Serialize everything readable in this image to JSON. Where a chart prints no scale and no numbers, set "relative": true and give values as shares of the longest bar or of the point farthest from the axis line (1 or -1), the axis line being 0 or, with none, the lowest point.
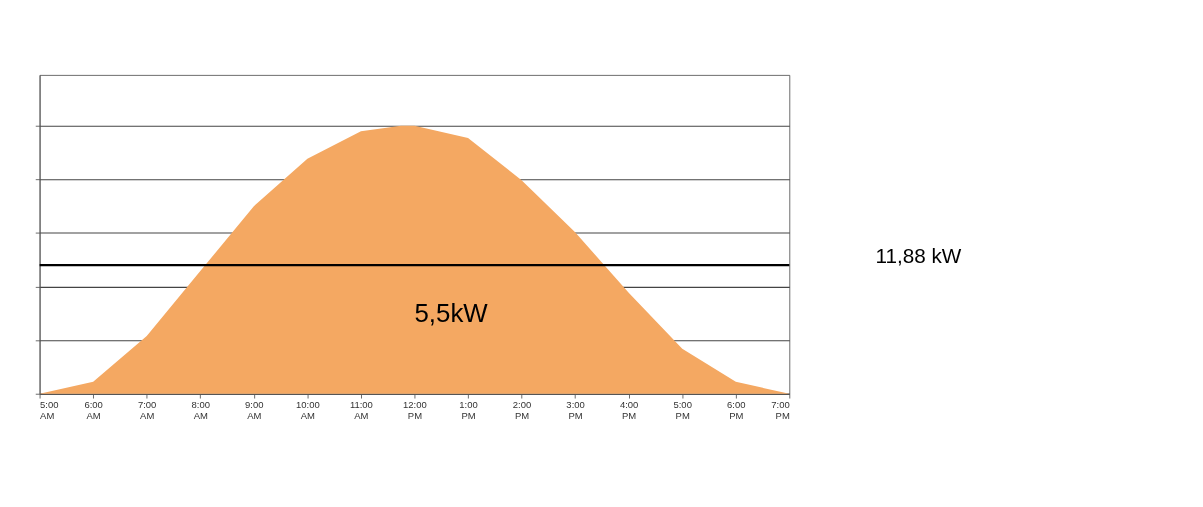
{
  "chart_data": {
    "type": "area",
    "relative": true,
    "x": [
      5,
      6,
      7,
      8,
      9,
      10,
      11,
      11.75,
      12,
      13,
      14,
      15,
      16,
      17,
      18,
      19
    ],
    "series": [
      {
        "color": "#f4a862",
        "values": [
          0,
          0.045,
          0.216,
          0.458,
          0.7,
          0.877,
          0.98,
          1.0,
          1.0,
          0.955,
          0.797,
          0.603,
          0.377,
          0.168,
          0.045,
          0
        ]
      }
    ],
    "xlim": [
      5,
      19
    ],
    "xticks": [
      {
        "value": 5,
        "label": "5:00 AM"
      },
      {
        "value": 6,
        "label": "6:00 AM"
      },
      {
        "value": 7,
        "label": "7:00 AM"
      },
      {
        "value": 8,
        "label": "8:00 AM"
      },
      {
        "value": 9,
        "label": "9:00 AM"
      },
      {
        "value": 10,
        "label": "10:00 AM"
      },
      {
        "value": 11,
        "label": "11:00 AM"
      },
      {
        "value": 12,
        "label": "12:00 PM"
      },
      {
        "value": 13,
        "label": "1:00 PM"
      },
      {
        "value": 14,
        "label": "2:00 PM"
      },
      {
        "value": 15,
        "label": "3:00 PM"
      },
      {
        "value": 16,
        "label": "4:00 PM"
      },
      {
        "value": 17,
        "label": "5:00 PM"
      },
      {
        "value": 18,
        "label": "6:00 PM"
      },
      {
        "value": 19,
        "label": "7:00 PM"
      }
    ],
    "ref_lines": [
      {
        "axis": "y",
        "value": 0.48,
        "color": "#000000"
      }
    ],
    "annotations": [
      "5,5kW",
      "11,88 kW"
    ],
    "grid": "y"
  }
}
